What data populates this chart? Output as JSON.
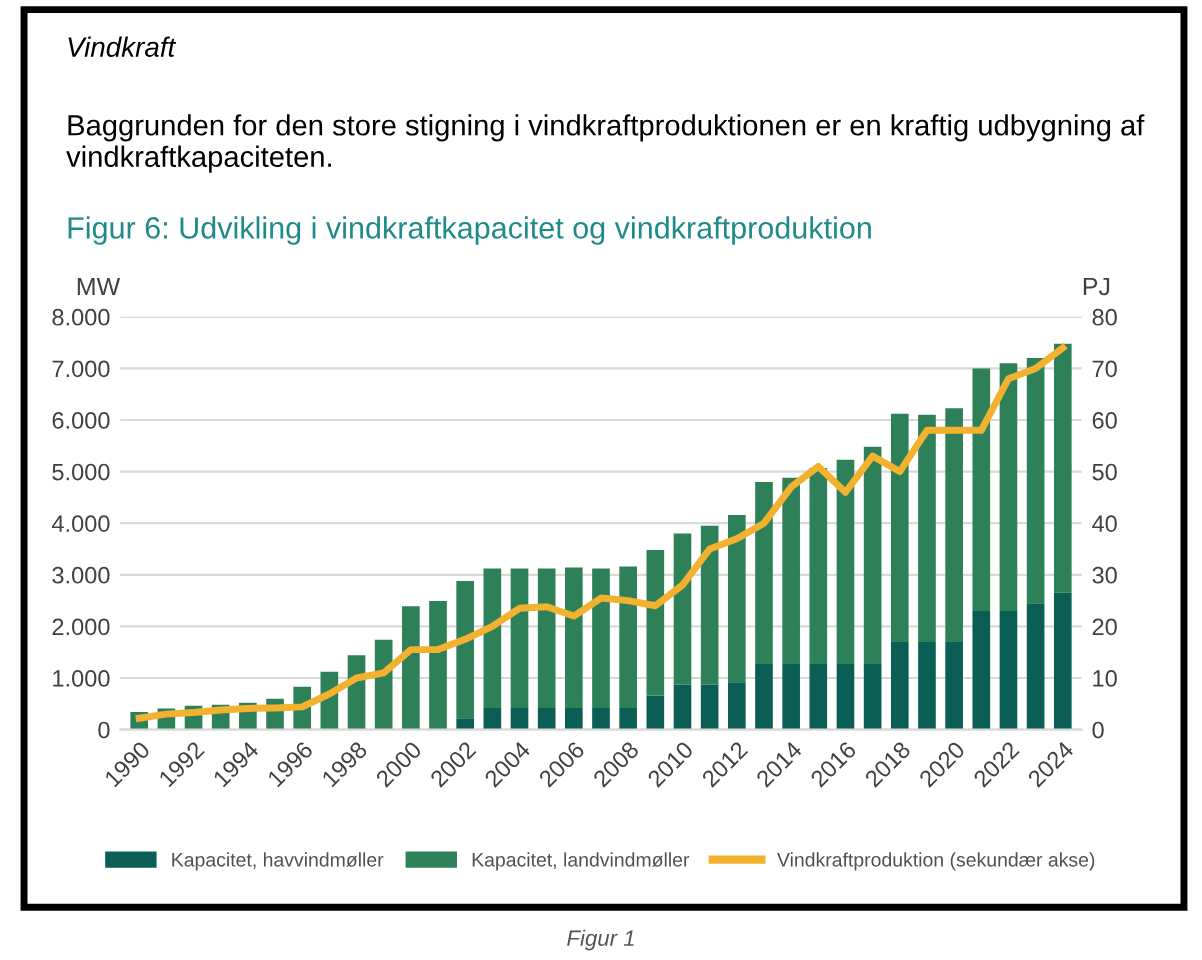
{
  "chart_data": {
    "type": "bar",
    "stacked": true,
    "title": "Figur 6: Udvikling i vindkraftkapacitet og vindkraftproduktion",
    "ylabel": "MW",
    "y2label": "PJ",
    "annotations": [
      "Vindkraft",
      "Baggrunden for den store stigning i vindkraftproduktionen er en kraftig udbygning af vindkraftkapaciteten.",
      "Figur 1"
    ],
    "categories": [
      "1990",
      null,
      "1992",
      null,
      "1994",
      null,
      "1996",
      null,
      "1998",
      null,
      "2000",
      null,
      "2002",
      null,
      "2004",
      null,
      "2006",
      null,
      "2008",
      null,
      "2010",
      null,
      "2012",
      null,
      "2014",
      null,
      "2016",
      null,
      "2018",
      null,
      "2020",
      null,
      "2022",
      null,
      "2024"
    ],
    "series": [
      {
        "name": "Kapacitet, havvindmøller",
        "color": "#0b5e55",
        "values": [
          0,
          0,
          0,
          0,
          0,
          0,
          0,
          0,
          0,
          0,
          0,
          0,
          220,
          420,
          420,
          420,
          420,
          420,
          420,
          660,
          870,
          870,
          920,
          1270,
          1270,
          1270,
          1270,
          1270,
          1700,
          1700,
          1700,
          2300,
          2300,
          2450,
          2650
        ]
      },
      {
        "name": "Kapacitet, landvindmøller",
        "color": "#2e8059",
        "values": [
          340,
          410,
          460,
          480,
          520,
          600,
          830,
          1120,
          1440,
          1740,
          2390,
          2490,
          2660,
          2700,
          2700,
          2700,
          2720,
          2700,
          2740,
          2820,
          2930,
          3080,
          3240,
          3530,
          3610,
          3800,
          3960,
          4210,
          4420,
          4400,
          4530,
          4700,
          4800,
          4750,
          4830
        ]
      },
      {
        "name": "Vindkraftproduktion (sekundær akse)",
        "type": "line",
        "axis": "y2",
        "color": "#f2b12e",
        "values": [
          2.2,
          3,
          3.3,
          3.8,
          4.1,
          4.2,
          4.4,
          6.9,
          10,
          11,
          15.5,
          15.5,
          17.5,
          20,
          23.5,
          23.8,
          22,
          25.5,
          25,
          24,
          28,
          35,
          37,
          40,
          47,
          51,
          46,
          53,
          50,
          58,
          58,
          58,
          68,
          70,
          74
        ]
      }
    ],
    "ylim": [
      0,
      8000
    ],
    "yticks": [
      0,
      {
        "value": 1000,
        "label": "1.000"
      },
      {
        "value": 2000,
        "label": "2.000"
      },
      {
        "value": 3000,
        "label": "3.000"
      },
      {
        "value": 4000,
        "label": "4.000"
      },
      {
        "value": 5000,
        "label": "5.000"
      },
      {
        "value": 6000,
        "label": "6.000"
      },
      {
        "value": 7000,
        "label": "7.000"
      },
      {
        "value": 8000,
        "label": "8.000"
      }
    ],
    "y2lim": [
      0,
      80
    ],
    "y2ticks": [
      0,
      10,
      20,
      30,
      40,
      50,
      60,
      70,
      80
    ],
    "grid": "y",
    "legend": "bottom"
  }
}
